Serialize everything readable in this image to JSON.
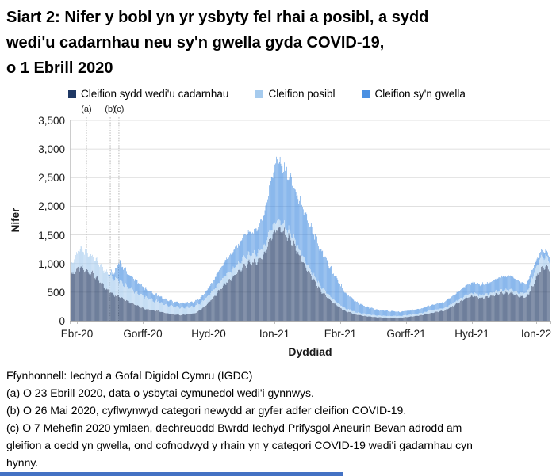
{
  "title_lines": [
    "Siart 2: Nifer y bobl yn yr ysbyty fel rhai a posibl, a sydd",
    "wedi'u cadarnhau neu sy'n gwella gyda COVID-19,",
    "o 1 Ebrill 2020"
  ],
  "chart_data": {
    "type": "bar",
    "subtype": "stacked-daily-bars",
    "title": "Siart 2: Nifer y bobl yn yr ysbyty fel rhai a posibl, a sydd wedi'u cadarnhau neu sy'n gwella gyda COVID-19, o 1 Ebrill 2020",
    "xlabel": "Dyddiad",
    "ylabel": "Nifer",
    "ylim": [
      0,
      3500
    ],
    "ytick_interval": 500,
    "ytick_labels": [
      "0",
      "500",
      "1,000",
      "1,500",
      "2,000",
      "2,500",
      "3,000",
      "3,500"
    ],
    "xtick_labels": [
      "Ebr-20",
      "Gorff-20",
      "Hyd-20",
      "Ion-21",
      "Ebr-21",
      "Gorff-21",
      "Hyd-21",
      "Ion-22"
    ],
    "start_date": "2020-04-01",
    "end_date": "2022-01-25",
    "grid": "horizontal",
    "legend_position": "top",
    "series": [
      {
        "name": "Cleifion sydd wedi'u cadarnhau",
        "color": "#1f3864"
      },
      {
        "name": "Cleifion posibl",
        "color": "#a6cbee"
      },
      {
        "name": "Cleifion sy'n gwella",
        "color": "#4a90e2"
      }
    ],
    "annotations": [
      {
        "label": "(a)",
        "date": "2020-04-23"
      },
      {
        "label": "(b)",
        "date": "2020-05-26"
      },
      {
        "label": "(c)",
        "date": "2020-06-07"
      }
    ],
    "points": [
      {
        "date": "2020-04-01",
        "confirmed": 780,
        "possible": 170,
        "recovering": 0
      },
      {
        "date": "2020-04-08",
        "confirmed": 880,
        "possible": 260,
        "recovering": 0
      },
      {
        "date": "2020-04-15",
        "confirmed": 930,
        "possible": 330,
        "recovering": 0
      },
      {
        "date": "2020-04-22",
        "confirmed": 870,
        "possible": 330,
        "recovering": 0
      },
      {
        "date": "2020-05-01",
        "confirmed": 820,
        "possible": 300,
        "recovering": 0
      },
      {
        "date": "2020-05-10",
        "confirmed": 700,
        "possible": 280,
        "recovering": 0
      },
      {
        "date": "2020-05-20",
        "confirmed": 560,
        "possible": 290,
        "recovering": 0
      },
      {
        "date": "2020-05-26",
        "confirmed": 500,
        "possible": 300,
        "recovering": 30
      },
      {
        "date": "2020-06-01",
        "confirmed": 450,
        "possible": 290,
        "recovering": 120
      },
      {
        "date": "2020-06-07",
        "confirmed": 430,
        "possible": 290,
        "recovering": 320
      },
      {
        "date": "2020-06-14",
        "confirmed": 380,
        "possible": 260,
        "recovering": 280
      },
      {
        "date": "2020-06-21",
        "confirmed": 330,
        "possible": 240,
        "recovering": 230
      },
      {
        "date": "2020-07-01",
        "confirmed": 270,
        "possible": 230,
        "recovering": 200
      },
      {
        "date": "2020-07-15",
        "confirmed": 200,
        "possible": 200,
        "recovering": 140
      },
      {
        "date": "2020-08-01",
        "confirmed": 170,
        "possible": 160,
        "recovering": 110
      },
      {
        "date": "2020-08-15",
        "confirmed": 120,
        "possible": 140,
        "recovering": 90
      },
      {
        "date": "2020-09-01",
        "confirmed": 100,
        "possible": 130,
        "recovering": 80
      },
      {
        "date": "2020-09-20",
        "confirmed": 130,
        "possible": 120,
        "recovering": 80
      },
      {
        "date": "2020-10-01",
        "confirmed": 220,
        "possible": 120,
        "recovering": 90
      },
      {
        "date": "2020-10-15",
        "confirmed": 400,
        "possible": 130,
        "recovering": 160
      },
      {
        "date": "2020-11-01",
        "confirmed": 650,
        "possible": 140,
        "recovering": 260
      },
      {
        "date": "2020-11-15",
        "confirmed": 800,
        "possible": 140,
        "recovering": 310
      },
      {
        "date": "2020-12-01",
        "confirmed": 1000,
        "possible": 150,
        "recovering": 380
      },
      {
        "date": "2020-12-15",
        "confirmed": 1020,
        "possible": 150,
        "recovering": 430
      },
      {
        "date": "2020-12-25",
        "confirmed": 1150,
        "possible": 150,
        "recovering": 550
      },
      {
        "date": "2021-01-05",
        "confirmed": 1500,
        "possible": 150,
        "recovering": 900
      },
      {
        "date": "2021-01-12",
        "confirmed": 1620,
        "possible": 150,
        "recovering": 1030
      },
      {
        "date": "2021-01-20",
        "confirmed": 1550,
        "possible": 130,
        "recovering": 1000
      },
      {
        "date": "2021-02-01",
        "confirmed": 1400,
        "possible": 120,
        "recovering": 930
      },
      {
        "date": "2021-02-15",
        "confirmed": 1050,
        "possible": 100,
        "recovering": 850
      },
      {
        "date": "2021-03-01",
        "confirmed": 750,
        "possible": 90,
        "recovering": 750
      },
      {
        "date": "2021-03-15",
        "confirmed": 500,
        "possible": 80,
        "recovering": 620
      },
      {
        "date": "2021-04-01",
        "confirmed": 300,
        "possible": 60,
        "recovering": 440
      },
      {
        "date": "2021-04-15",
        "confirmed": 180,
        "possible": 50,
        "recovering": 290
      },
      {
        "date": "2021-05-01",
        "confirmed": 110,
        "possible": 40,
        "recovering": 180
      },
      {
        "date": "2021-05-15",
        "confirmed": 80,
        "possible": 35,
        "recovering": 130
      },
      {
        "date": "2021-06-01",
        "confirmed": 60,
        "possible": 30,
        "recovering": 100
      },
      {
        "date": "2021-06-15",
        "confirmed": 55,
        "possible": 30,
        "recovering": 85
      },
      {
        "date": "2021-07-01",
        "confirmed": 55,
        "possible": 30,
        "recovering": 75
      },
      {
        "date": "2021-07-15",
        "confirmed": 70,
        "possible": 35,
        "recovering": 75
      },
      {
        "date": "2021-08-01",
        "confirmed": 100,
        "possible": 40,
        "recovering": 80
      },
      {
        "date": "2021-08-15",
        "confirmed": 140,
        "possible": 45,
        "recovering": 90
      },
      {
        "date": "2021-09-01",
        "confirmed": 180,
        "possible": 45,
        "recovering": 105
      },
      {
        "date": "2021-09-15",
        "confirmed": 280,
        "possible": 50,
        "recovering": 130
      },
      {
        "date": "2021-10-01",
        "confirmed": 400,
        "possible": 55,
        "recovering": 165
      },
      {
        "date": "2021-10-10",
        "confirmed": 430,
        "possible": 55,
        "recovering": 185
      },
      {
        "date": "2021-10-20",
        "confirmed": 400,
        "possible": 50,
        "recovering": 180
      },
      {
        "date": "2021-11-01",
        "confirmed": 420,
        "possible": 55,
        "recovering": 195
      },
      {
        "date": "2021-11-15",
        "confirmed": 470,
        "possible": 55,
        "recovering": 225
      },
      {
        "date": "2021-12-01",
        "confirmed": 490,
        "possible": 60,
        "recovering": 250
      },
      {
        "date": "2021-12-10",
        "confirmed": 450,
        "possible": 60,
        "recovering": 220
      },
      {
        "date": "2021-12-23",
        "confirmed": 400,
        "possible": 70,
        "recovering": 150
      },
      {
        "date": "2022-01-01",
        "confirmed": 600,
        "possible": 160,
        "recovering": 140
      },
      {
        "date": "2022-01-08",
        "confirmed": 800,
        "possible": 200,
        "recovering": 120
      },
      {
        "date": "2022-01-14",
        "confirmed": 920,
        "possible": 200,
        "recovering": 110
      },
      {
        "date": "2022-01-20",
        "confirmed": 930,
        "possible": 170,
        "recovering": 95
      },
      {
        "date": "2022-01-25",
        "confirmed": 920,
        "possible": 150,
        "recovering": 90
      }
    ]
  },
  "footnotes": {
    "lines": [
      "Ffynhonnell: Iechyd a Gofal Digidol Cymru (IGDC)",
      "(a) O 23 Ebrill 2020, data o ysbytai cymunedol wedi'i gynnwys.",
      "(b) O 26 Mai 2020, cyflwynwyd categori newydd ar gyfer adfer cleifion COVID-19.",
      "(c) O 7 Mehefin 2020 ymlaen, dechreuodd Bwrdd Iechyd Prifysgol Aneurin Bevan adrodd am",
      "gleifion a oedd yn gwella, ond cofnodwyd y rhain yn y categori COVID-19 wedi'i gadarnhau cyn",
      "hynny."
    ]
  },
  "bottom_bar_color": "#4472c4"
}
